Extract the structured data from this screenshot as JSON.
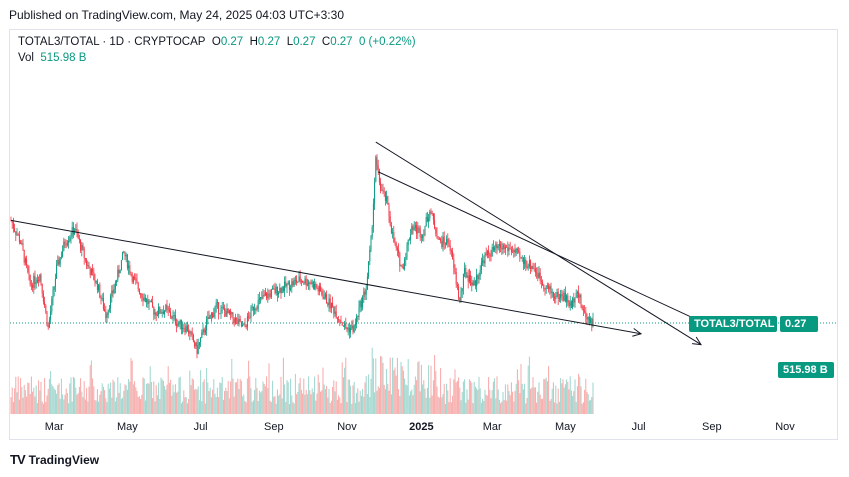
{
  "header": {
    "published": "Published on TradingView.com, May 24, 2025 04:03 UTC+3:30"
  },
  "legend": {
    "symbol": "TOTAL3/TOTAL · 1D · CRYPTOCAP",
    "o_label": "O",
    "o_value": "0.27",
    "h_label": "H",
    "h_value": "0.27",
    "l_label": "L",
    "l_value": "0.27",
    "c_label": "C",
    "c_value": "0.27",
    "change": "0 (+0.22%)",
    "vol_label": "Vol",
    "vol_value": "515.98 B"
  },
  "badges": {
    "symbol": "TOTAL3/TOTAL",
    "price": "0.27",
    "volume": "515.98 B"
  },
  "brand": {
    "name": "TradingView",
    "logo": "TV"
  },
  "colors": {
    "up": "#089981",
    "down": "#f23645",
    "vol_up": "#9cd6cd",
    "vol_down": "#f7a9a7",
    "line": "#131722"
  },
  "chart_data": {
    "type": "candlestick",
    "x_tick_labels": [
      "Mar",
      "May",
      "Jul",
      "Sep",
      "Nov",
      "2025",
      "Mar",
      "May",
      "Jul",
      "Sep",
      "Nov"
    ],
    "last_close": 0.27,
    "last_volume": "515.98 B",
    "price_line": 0.27,
    "price_path": [
      [
        "2024-01-25",
        0.308
      ],
      [
        "2024-02-02",
        0.3
      ],
      [
        "2024-02-10",
        0.284
      ],
      [
        "2024-02-18",
        0.288
      ],
      [
        "2024-02-25",
        0.268
      ],
      [
        "2024-03-03",
        0.29
      ],
      [
        "2024-03-10",
        0.3
      ],
      [
        "2024-03-18",
        0.305
      ],
      [
        "2024-03-28",
        0.292
      ],
      [
        "2024-04-06",
        0.284
      ],
      [
        "2024-04-13",
        0.273
      ],
      [
        "2024-04-20",
        0.283
      ],
      [
        "2024-04-28",
        0.296
      ],
      [
        "2024-05-06",
        0.286
      ],
      [
        "2024-05-14",
        0.28
      ],
      [
        "2024-05-24",
        0.274
      ],
      [
        "2024-06-02",
        0.275
      ],
      [
        "2024-06-12",
        0.27
      ],
      [
        "2024-06-20",
        0.268
      ],
      [
        "2024-06-28",
        0.26
      ],
      [
        "2024-07-06",
        0.27
      ],
      [
        "2024-07-14",
        0.276
      ],
      [
        "2024-07-22",
        0.274
      ],
      [
        "2024-07-30",
        0.271
      ],
      [
        "2024-08-06",
        0.268
      ],
      [
        "2024-08-14",
        0.276
      ],
      [
        "2024-08-24",
        0.28
      ],
      [
        "2024-09-02",
        0.282
      ],
      [
        "2024-09-12",
        0.284
      ],
      [
        "2024-09-22",
        0.286
      ],
      [
        "2024-10-01",
        0.285
      ],
      [
        "2024-10-10",
        0.281
      ],
      [
        "2024-10-20",
        0.275
      ],
      [
        "2024-10-30",
        0.268
      ],
      [
        "2024-11-06",
        0.268
      ],
      [
        "2024-11-10",
        0.275
      ],
      [
        "2024-11-16",
        0.283
      ],
      [
        "2024-11-20",
        0.3
      ],
      [
        "2024-11-24",
        0.33
      ],
      [
        "2024-11-28",
        0.32
      ],
      [
        "2024-12-03",
        0.315
      ],
      [
        "2024-12-09",
        0.3
      ],
      [
        "2024-12-16",
        0.29
      ],
      [
        "2024-12-24",
        0.306
      ],
      [
        "2025-01-02",
        0.303
      ],
      [
        "2025-01-08",
        0.312
      ],
      [
        "2025-01-16",
        0.3
      ],
      [
        "2025-01-24",
        0.3
      ],
      [
        "2025-02-02",
        0.278
      ],
      [
        "2025-02-06",
        0.289
      ],
      [
        "2025-02-14",
        0.284
      ],
      [
        "2025-02-22",
        0.294
      ],
      [
        "2025-03-02",
        0.297
      ],
      [
        "2025-03-10",
        0.298
      ],
      [
        "2025-03-18",
        0.297
      ],
      [
        "2025-03-26",
        0.293
      ],
      [
        "2025-04-04",
        0.291
      ],
      [
        "2025-04-12",
        0.285
      ],
      [
        "2025-04-22",
        0.28
      ],
      [
        "2025-04-30",
        0.28
      ],
      [
        "2025-05-06",
        0.276
      ],
      [
        "2025-05-10",
        0.283
      ],
      [
        "2025-05-16",
        0.274
      ],
      [
        "2025-05-24",
        0.27
      ]
    ],
    "trendlines": [
      {
        "from": [
          "2024-01-25",
          0.308
        ],
        "to": [
          "2025-07-03",
          0.266
        ]
      },
      {
        "from": [
          "2024-11-24",
          0.337
        ],
        "to": [
          "2025-08-22",
          0.262
        ]
      },
      {
        "from": [
          "2024-11-26",
          0.326
        ],
        "to": [
          "2025-09-08",
          0.267
        ]
      }
    ]
  }
}
